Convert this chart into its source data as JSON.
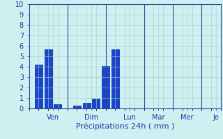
{
  "bar_positions": [
    1,
    2,
    3,
    5,
    6,
    7,
    8,
    9
  ],
  "bar_values": [
    4.2,
    5.7,
    0.4,
    0.3,
    0.55,
    0.95,
    4.05,
    5.7
  ],
  "bar_colors": [
    "#1a44cc",
    "#1a44cc",
    "#1a44cc",
    "#1a44cc",
    "#1a44cc",
    "#1a44cc",
    "#1a44cc",
    "#1a44cc"
  ],
  "bar_width": 0.8,
  "xlim": [
    0,
    20
  ],
  "ylim": [
    0,
    10
  ],
  "yticks": [
    0,
    1,
    2,
    3,
    4,
    5,
    6,
    7,
    8,
    9,
    10
  ],
  "xtick_positions": [
    2.5,
    6.5,
    10.5,
    13.5,
    16.5,
    19.5
  ],
  "xtick_labels": [
    "Ven",
    "Dim",
    "Lun",
    "Mar",
    "Mer",
    "Je"
  ],
  "day_separators": [
    4,
    8,
    12,
    15,
    18
  ],
  "xlabel": "Précipitations 24h ( mm )",
  "background_color": "#cef0f0",
  "grid_color": "#aacccc",
  "bar_face_color": "#1a44cc",
  "bar_edge_color": "#0022aa",
  "axis_color": "#334499",
  "xlabel_fontsize": 8,
  "tick_fontsize": 7,
  "tick_color": "#2233aa",
  "sep_color": "#334499",
  "sep_linewidth": 0.8
}
